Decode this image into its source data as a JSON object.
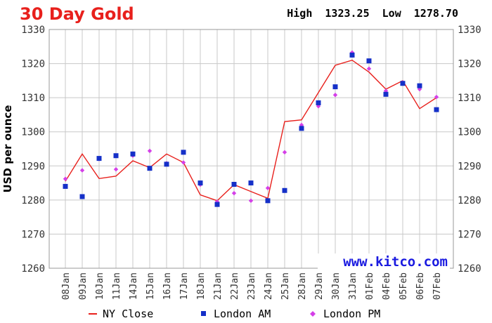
{
  "header": {
    "title": "30 Day Gold",
    "high_label": "High",
    "high_value": "1323.25",
    "low_label": "Low",
    "low_value": "1278.70"
  },
  "watermark": "www.kitco.com",
  "colors": {
    "title": "#e8201c",
    "ny_close": "#e8201c",
    "london_am": "#1530c8",
    "london_pm": "#d43fe8",
    "watermark": "#1a1ae0",
    "grid": "#c8c8c8",
    "axis_text": "#333333"
  },
  "chart_data": {
    "type": "line",
    "title": "30 Day Gold",
    "ylabel": "USD per ounce",
    "xlabel": "",
    "ylim": [
      1260,
      1330
    ],
    "yticks": [
      1260,
      1270,
      1280,
      1290,
      1300,
      1310,
      1320,
      1330
    ],
    "y_axis_both_sides": true,
    "grid": true,
    "legend_position": "bottom",
    "categories": [
      "08Jan",
      "09Jan",
      "10Jan",
      "11Jan",
      "14Jan",
      "15Jan",
      "16Jan",
      "17Jan",
      "18Jan",
      "21Jan",
      "22Jan",
      "23Jan",
      "24Jan",
      "25Jan",
      "28Jan",
      "29Jan",
      "30Jan",
      "31Jan",
      "01Feb",
      "04Feb",
      "05Feb",
      "06Feb",
      "07Feb"
    ],
    "series": [
      {
        "name": "NY Close",
        "style": "line",
        "values": [
          1285.5,
          1293.5,
          1286.3,
          1287.0,
          1291.5,
          1289.5,
          1293.5,
          1291.0,
          1281.5,
          1279.8,
          1284.5,
          1282.5,
          1280.5,
          1303.0,
          1303.5,
          1311.5,
          1319.5,
          1321.0,
          1317.5,
          1312.5,
          1315.0,
          1306.8,
          1310.0
        ]
      },
      {
        "name": "London AM",
        "style": "square",
        "values": [
          1284.0,
          1281.0,
          1292.2,
          1293.0,
          1293.5,
          1289.3,
          1290.5,
          1294.0,
          1285.0,
          1278.7,
          1284.6,
          1285.0,
          1279.8,
          1282.8,
          1301.0,
          1308.5,
          1313.2,
          1322.5,
          1320.8,
          1311.0,
          1314.2,
          1313.5,
          1306.5
        ]
      },
      {
        "name": "London PM",
        "style": "diamond",
        "values": [
          1286.2,
          1288.7,
          1292.0,
          1289.0,
          1293.0,
          1294.4,
          1290.8,
          1291.0,
          1284.5,
          1279.5,
          1282.0,
          1279.8,
          1283.5,
          1294.0,
          1302.0,
          1307.5,
          1310.8,
          1323.25,
          1318.5,
          1312.0,
          1314.5,
          1312.5,
          1310.2
        ]
      }
    ]
  }
}
